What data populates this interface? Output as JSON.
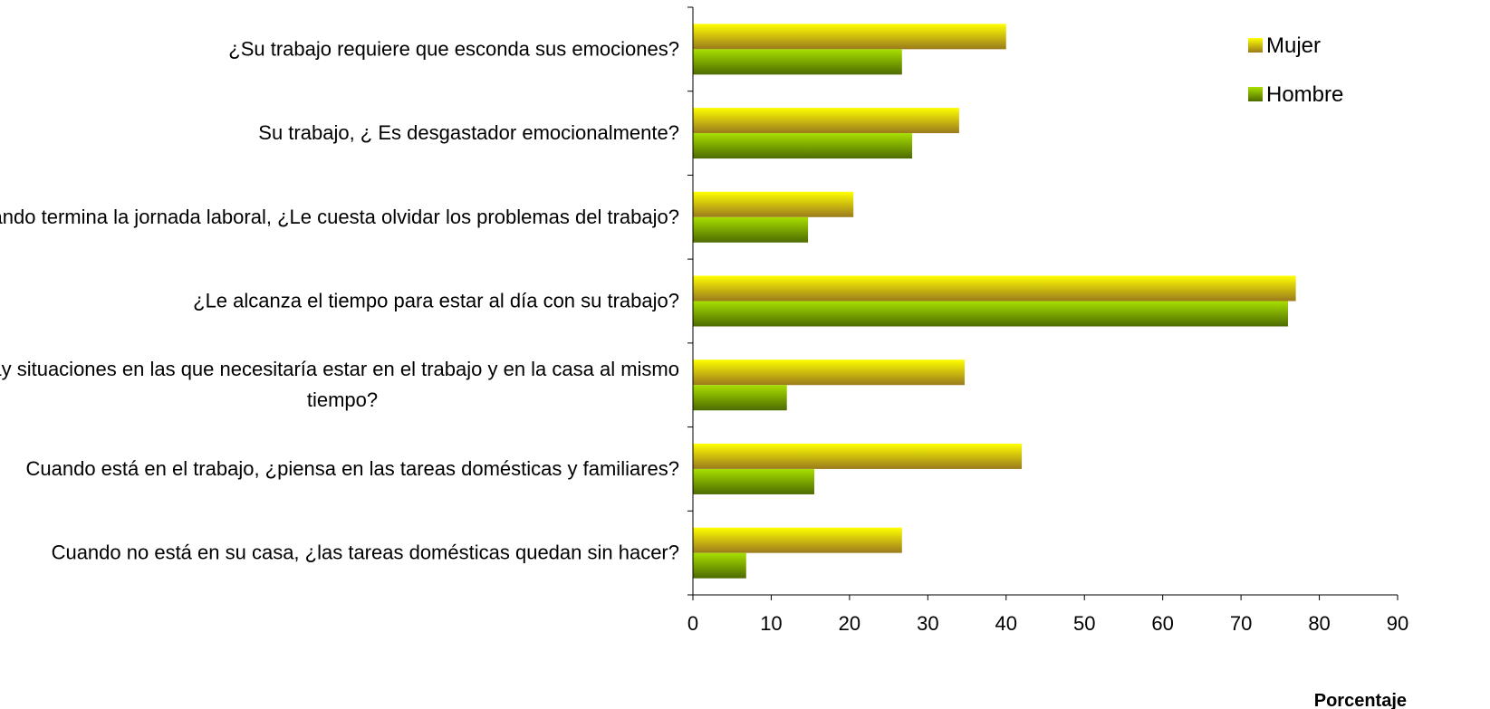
{
  "chart_data": {
    "type": "bar",
    "orientation": "horizontal",
    "categories": [
      [
        "¿Su trabajo requiere que esconda sus emociones?"
      ],
      [
        "Su trabajo, ¿ Es desgastador emocionalmente?"
      ],
      [
        "Cuando termina la jornada laboral, ¿Le cuesta olvidar los problemas del trabajo?"
      ],
      [
        "¿Le alcanza el tiempo para estar al día con su trabajo?"
      ],
      [
        "¿Hay situaciones en las que necesitaría estar en el trabajo y en la casa al mismo",
        "tiempo?"
      ],
      [
        "Cuando está en el trabajo, ¿piensa en las tareas domésticas y familiares?"
      ],
      [
        "Cuando no está en su casa, ¿las tareas domésticas quedan sin hacer?"
      ]
    ],
    "series": [
      {
        "name": "Mujer",
        "values": [
          40,
          34,
          20.5,
          77,
          34.7,
          42,
          26.7
        ],
        "color_top": "#ffff00",
        "color_bottom": "#9a7a1c"
      },
      {
        "name": "Hombre",
        "values": [
          26.7,
          28,
          14.7,
          76,
          12,
          15.5,
          6.8
        ],
        "color_top": "#a8e000",
        "color_bottom": "#4d6a00"
      }
    ],
    "xlabel": "Porcentaje",
    "xlim": [
      0,
      90
    ],
    "xticks": [
      0,
      10,
      20,
      30,
      40,
      50,
      60,
      70,
      80,
      90
    ],
    "grid": false,
    "legend_position": "top-right"
  }
}
